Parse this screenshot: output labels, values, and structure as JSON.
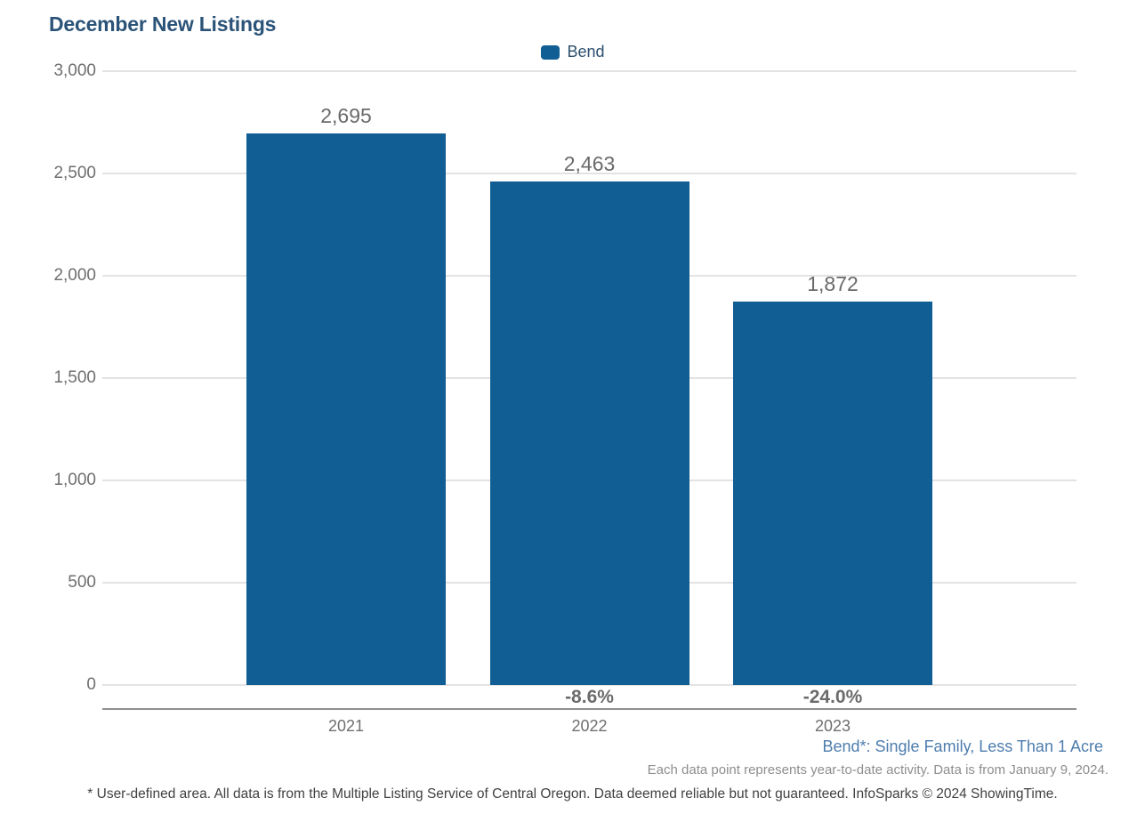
{
  "page": {
    "title": "December New Listings"
  },
  "legend": {
    "items": [
      {
        "label": "Bend",
        "color": "#105E93"
      }
    ]
  },
  "chart_data": {
    "type": "bar",
    "title": "December New Listings",
    "categories": [
      "2021",
      "2022",
      "2023"
    ],
    "series": [
      {
        "name": "Bend",
        "color": "#105E93",
        "values": [
          2695,
          2463,
          1872
        ]
      }
    ],
    "value_labels": [
      "2,695",
      "2,463",
      "1,872"
    ],
    "pct_change_labels": [
      "",
      "-8.6%",
      "-24.0%"
    ],
    "ylim": [
      0,
      3000
    ],
    "ytick_values": [
      0,
      500,
      1000,
      1500,
      2000,
      2500,
      3000
    ],
    "ytick_labels": [
      "0",
      "500",
      "1,000",
      "1,500",
      "2,000",
      "2,500",
      "3,000"
    ],
    "grid": true,
    "legend_position": "top-center",
    "xlabel": "",
    "ylabel": ""
  },
  "footnotes": {
    "series_definition": "Bend*: Single Family, Less Than 1 Acre",
    "data_note": "Each data point represents year-to-date activity. Data is from January 9, 2024.",
    "disclaimer": "* User-defined area. All data is from the Multiple Listing Service of Central Oregon. Data deemed reliable but not guaranteed. InfoSparks © 2024 ShowingTime."
  },
  "colors": {
    "bar": "#105E93",
    "title": "#2B5378",
    "legend_text": "#2C4F6D",
    "grid_line": "#E3E3E3",
    "axis_line": "#8F8F8F",
    "tick_label": "#6F6F6F",
    "value_label": "#6A6A6A",
    "pct_label": "#6B6B6B",
    "series_note": "#4E7DAD",
    "muted_note": "#8E8E8E",
    "disclaimer": "#414141"
  }
}
